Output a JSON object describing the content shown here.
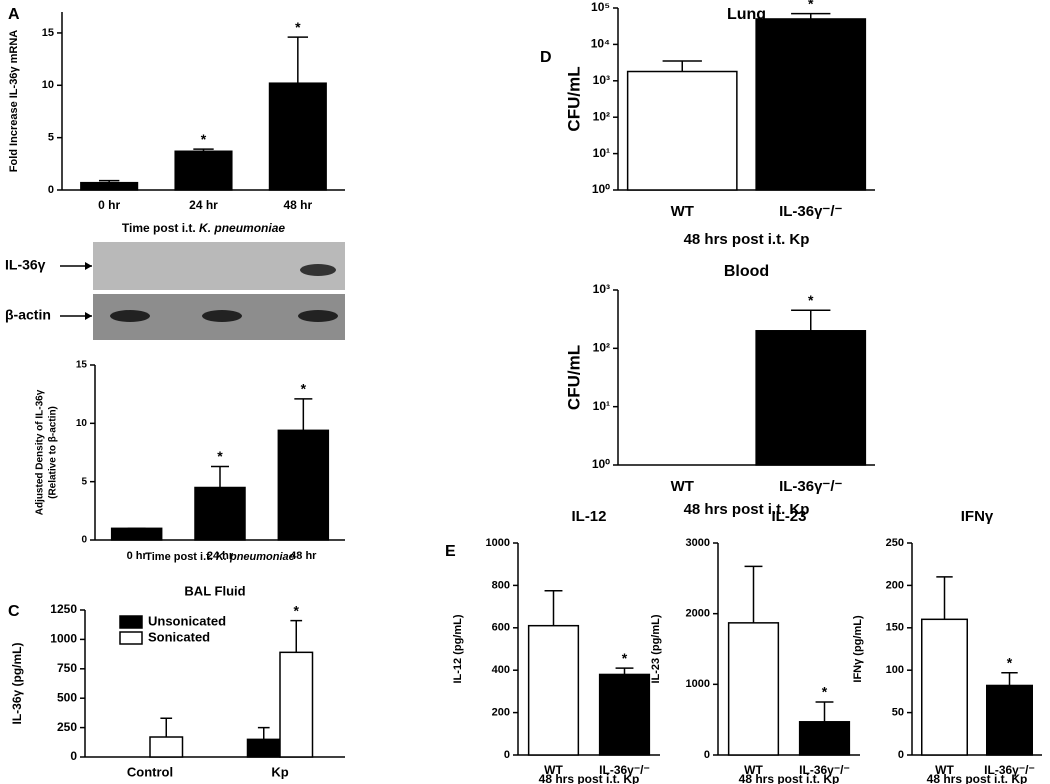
{
  "panel_labels": [
    "A",
    "C",
    "D",
    "E"
  ],
  "blot": {
    "labels": [
      "IL-36γ",
      "β-actin"
    ]
  },
  "chart_data": [
    {
      "type": "bar",
      "categories": [
        "0 hr",
        "24 hr",
        "48 hr"
      ],
      "values": [
        0.7,
        3.7,
        10.2
      ],
      "errors": [
        0.2,
        0.2,
        4.4
      ],
      "colors": [
        "#000000",
        "#000000",
        "#000000"
      ],
      "significance": [
        null,
        "*",
        "*"
      ],
      "ylim": [
        0,
        17
      ],
      "yticks": [
        0,
        5,
        10,
        15
      ],
      "ylabel": [
        "Fold Increase IL-36γ mRNA"
      ],
      "xlabel": [
        "Time post i.t. ",
        "K. pneumoniae"
      ]
    },
    {
      "type": "bar",
      "categories": [
        "0 hr",
        "24 hr",
        "48 hr"
      ],
      "values": [
        1,
        4.5,
        9.4
      ],
      "errors": [
        0,
        1.8,
        2.7
      ],
      "colors": [
        "#000000",
        "#000000",
        "#000000"
      ],
      "significance": [
        null,
        "*",
        "*"
      ],
      "ylim": [
        0,
        15
      ],
      "yticks": [
        0,
        5,
        10,
        15
      ],
      "ylabel": [
        "Adjusted Density of IL-36γ",
        "(Relative to β-actin)"
      ],
      "xlabel": [
        "Time post i.t. ",
        "K. pneumoniae"
      ]
    },
    {
      "type": "grouped-bar",
      "title": "BAL Fluid",
      "categories": [
        "Control",
        "Kp"
      ],
      "series": [
        {
          "name": "Unsonicated",
          "color": "#000000",
          "values": [
            0,
            150
          ],
          "errors": [
            null,
            100
          ],
          "significance": [
            null,
            null
          ]
        },
        {
          "name": "Sonicated",
          "color": "#ffffff",
          "values": [
            170,
            890
          ],
          "errors": [
            160,
            270
          ],
          "significance": [
            null,
            "*"
          ]
        }
      ],
      "ylim": [
        0,
        1250
      ],
      "yticks": [
        0,
        250,
        500,
        750,
        1000,
        1250
      ],
      "ylabel": [
        "IL-36γ (pg/mL)"
      ]
    },
    {
      "type": "bar",
      "title": "Lung",
      "categories": [
        "WT",
        "IL-36γ⁻/⁻"
      ],
      "values": [
        1800,
        50000
      ],
      "errors": [
        1700,
        20000
      ],
      "colors": [
        "#ffffff",
        "#000000"
      ],
      "significance": [
        null,
        "*"
      ],
      "log_scale": true,
      "ylim": [
        1,
        100000
      ],
      "yticks": [
        {
          "value": 1,
          "label": "10⁰"
        },
        {
          "value": 10,
          "label": "10¹"
        },
        {
          "value": 100,
          "label": "10²"
        },
        {
          "value": 1000,
          "label": "10³"
        },
        {
          "value": 10000,
          "label": "10⁴"
        },
        {
          "value": 100000,
          "label": "10⁵"
        }
      ],
      "ylabel": [
        "CFU/mL"
      ],
      "xlabel": [
        "48 hrs post i.t. Kp"
      ]
    },
    {
      "type": "bar",
      "title": "Blood",
      "categories": [
        "WT",
        "IL-36γ⁻/⁻"
      ],
      "values": [
        null,
        200
      ],
      "errors": [
        null,
        250
      ],
      "colors": [
        "#ffffff",
        "#000000"
      ],
      "significance": [
        null,
        "*"
      ],
      "log_scale": true,
      "ylim": [
        1,
        1000
      ],
      "yticks": [
        {
          "value": 1,
          "label": "10⁰"
        },
        {
          "value": 10,
          "label": "10¹"
        },
        {
          "value": 100,
          "label": "10²"
        },
        {
          "value": 1000,
          "label": "10³"
        }
      ],
      "ylabel": [
        "CFU/mL"
      ],
      "xlabel": [
        "48 hrs post i.t. Kp"
      ]
    },
    {
      "type": "bar",
      "title": "IL-12",
      "categories": [
        "WT",
        "IL-36γ⁻/⁻"
      ],
      "values": [
        610,
        380
      ],
      "errors": [
        165,
        30
      ],
      "colors": [
        "#ffffff",
        "#000000"
      ],
      "significance": [
        null,
        "*"
      ],
      "ylim": [
        0,
        1000
      ],
      "yticks": [
        0,
        200,
        400,
        600,
        800,
        1000
      ],
      "ylabel": [
        "IL-12 (pg/mL)"
      ],
      "xlabel": [
        "48 hrs post i.t. Kp"
      ]
    },
    {
      "type": "bar",
      "title": "IL-23",
      "categories": [
        "WT",
        "IL-36γ⁻/⁻"
      ],
      "values": [
        1870,
        470
      ],
      "errors": [
        800,
        280
      ],
      "colors": [
        "#ffffff",
        "#000000"
      ],
      "significance": [
        null,
        "*"
      ],
      "ylim": [
        0,
        3000
      ],
      "yticks": [
        0,
        1000,
        2000,
        3000
      ],
      "ylabel": [
        "IL-23 (pg/mL)"
      ],
      "xlabel": [
        "48 hrs post i.t. Kp"
      ]
    },
    {
      "type": "bar",
      "title": "IFNγ",
      "categories": [
        "WT",
        "IL-36γ⁻/⁻"
      ],
      "values": [
        160,
        82
      ],
      "errors": [
        50,
        15
      ],
      "colors": [
        "#ffffff",
        "#000000"
      ],
      "significance": [
        null,
        "*"
      ],
      "ylim": [
        0,
        250
      ],
      "yticks": [
        0,
        50,
        100,
        150,
        200,
        250
      ],
      "ylabel": [
        "IFNγ (pg/mL)"
      ],
      "xlabel": [
        "48 hrs post i.t. Kp"
      ]
    }
  ]
}
